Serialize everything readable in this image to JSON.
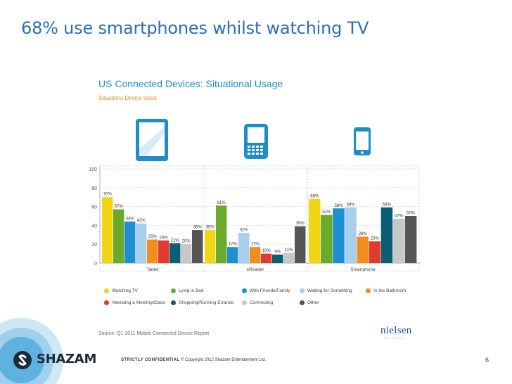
{
  "slide": {
    "title": "68% use smartphones whilst watching TV",
    "page_number": "6",
    "brand_name": "SHAZAM",
    "confidential_label": "STRICTLY CONFIDENTIAL",
    "copyright": "© Copyright 2012 Shazam Entertainment Ltd."
  },
  "chart_data": {
    "type": "bar",
    "title": "US Connected Devices: Situational Usage",
    "subtitle": "Situations Device Used",
    "categories": [
      "Tablet",
      "eReader",
      "Smartphone"
    ],
    "ylim": [
      0,
      100
    ],
    "yticks": [
      0,
      20,
      40,
      60,
      80,
      100
    ],
    "grid": true,
    "series": [
      {
        "name": "Watching TV",
        "color": "#f2d514",
        "values": [
          70,
          35,
          68
        ]
      },
      {
        "name": "Lying in Bed",
        "color": "#6aab2e",
        "values": [
          57,
          61,
          51
        ]
      },
      {
        "name": "With Friends/Family",
        "color": "#1e8fd1",
        "values": [
          44,
          17,
          58
        ]
      },
      {
        "name": "Waiting for Something",
        "color": "#a9cfee",
        "values": [
          42,
          32,
          59
        ]
      },
      {
        "name": "In the Bathroom",
        "color": "#f28c1e",
        "values": [
          25,
          17,
          28
        ]
      },
      {
        "name": "Attending a Meeting/Class",
        "color": "#e23b2e",
        "values": [
          24,
          10,
          23
        ]
      },
      {
        "name": "Shopping/Running Errands",
        "color": "#0b5e74",
        "values": [
          21,
          9,
          59
        ]
      },
      {
        "name": "Commuting",
        "color": "#c8c8c8",
        "values": [
          20,
          11,
          47
        ]
      },
      {
        "name": "Other",
        "color": "#555555",
        "values": [
          35,
          39,
          50
        ]
      }
    ],
    "bar_labels": [
      [
        "70%",
        "57%",
        "44%",
        "42%",
        "25%",
        "24%",
        "21%",
        "20%",
        "35%"
      ],
      [
        "35%",
        "61%",
        "17%",
        "32%",
        "17%",
        "10%",
        "9%",
        "11%",
        "39%"
      ],
      [
        "68%",
        "51%",
        "58%",
        "59%",
        "28%",
        "23%",
        "59%",
        "47%",
        "50%"
      ]
    ],
    "source": "Source: Q1 2011 Mobile Connected Device Report",
    "logo_text": "nielsen"
  }
}
